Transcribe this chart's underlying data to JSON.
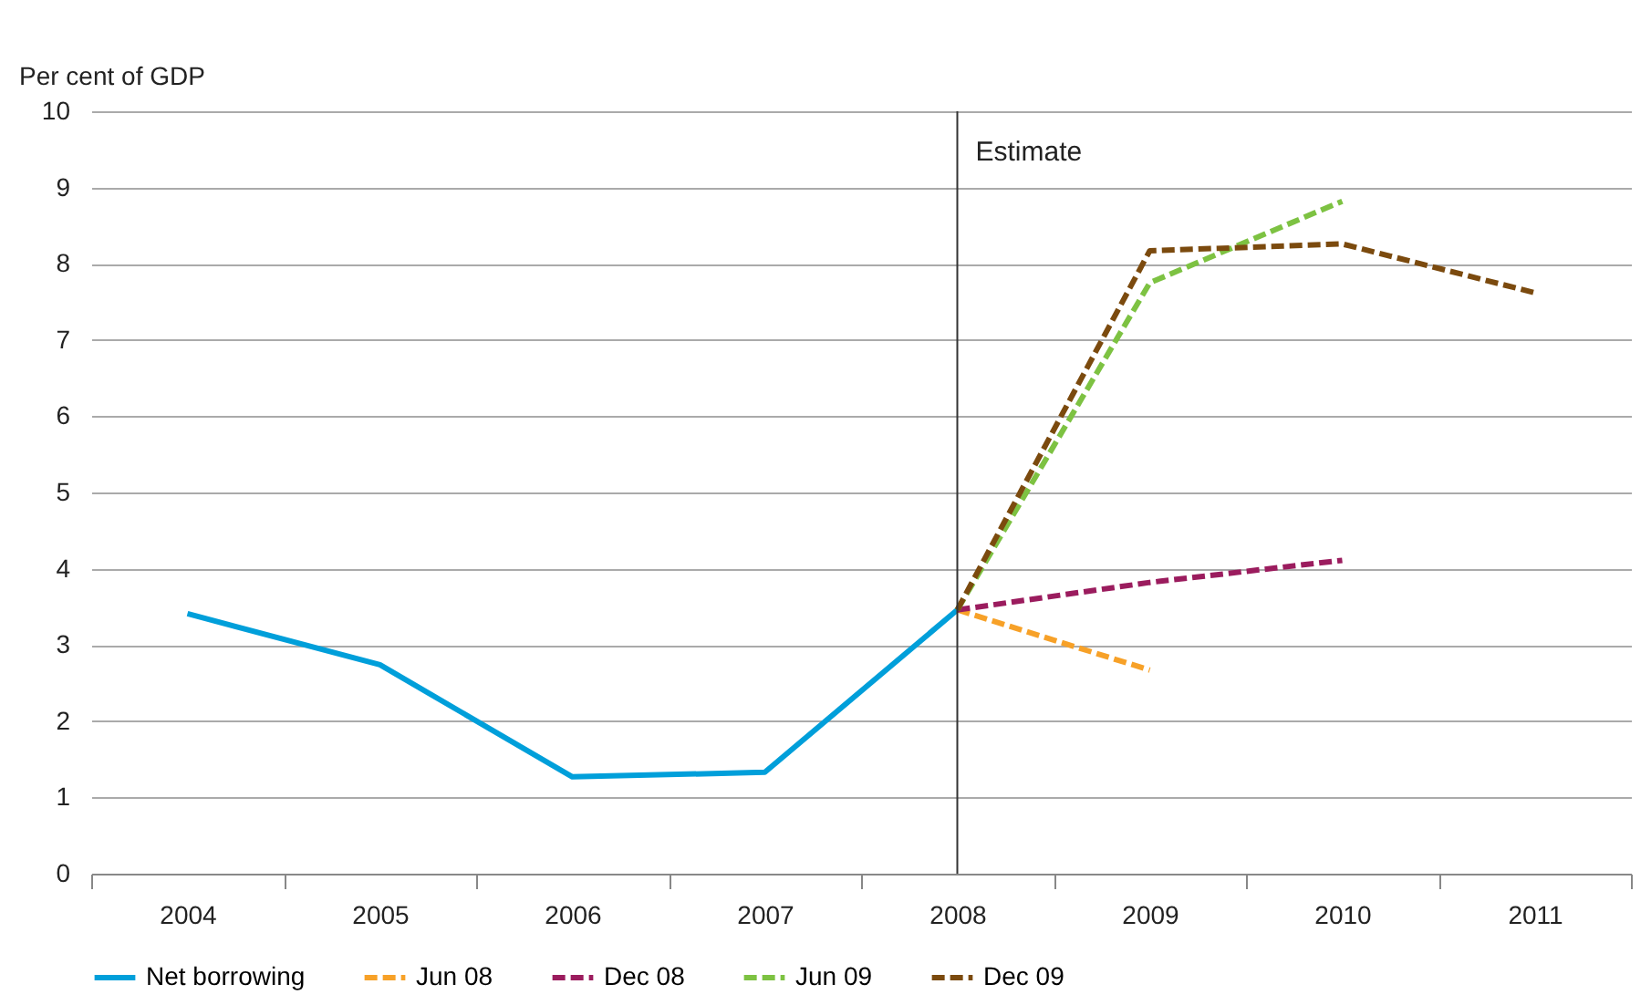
{
  "chart_data": {
    "type": "line",
    "ylabel": "Per cent of GDP",
    "categories": [
      "2004",
      "2005",
      "2006",
      "2007",
      "2008",
      "2009",
      "2010",
      "2011"
    ],
    "series": [
      {
        "name": "Net borrowing",
        "color": "#009fda",
        "line_style": "solid",
        "values": [
          3.41,
          2.74,
          1.27,
          1.33,
          3.46,
          null,
          null,
          null
        ]
      },
      {
        "name": "Jun 08",
        "color": "#f7a128",
        "line_style": "dashed",
        "values": [
          null,
          null,
          null,
          null,
          3.46,
          2.67,
          null,
          null
        ]
      },
      {
        "name": "Dec 08",
        "color": "#9b1c5e",
        "line_style": "dashed",
        "values": [
          null,
          null,
          null,
          null,
          3.46,
          3.82,
          4.11,
          null
        ]
      },
      {
        "name": "Jun 09",
        "color": "#7dc242",
        "line_style": "dashed",
        "values": [
          null,
          null,
          null,
          null,
          3.46,
          7.75,
          8.82,
          null
        ]
      },
      {
        "name": "Dec 09",
        "color": "#7b4a0e",
        "line_style": "dashed",
        "values": [
          null,
          null,
          null,
          null,
          3.46,
          8.17,
          8.26,
          7.62
        ]
      }
    ],
    "ylim": [
      0,
      10
    ],
    "yticks": [
      0,
      1,
      2,
      3,
      4,
      5,
      6,
      7,
      8,
      9,
      10
    ],
    "grid": "y",
    "legend": "bottom",
    "marker": "none",
    "ref_lines": [
      {
        "axis": "x",
        "value": "2008",
        "label": "Estimate",
        "color": "#333333"
      }
    ]
  }
}
